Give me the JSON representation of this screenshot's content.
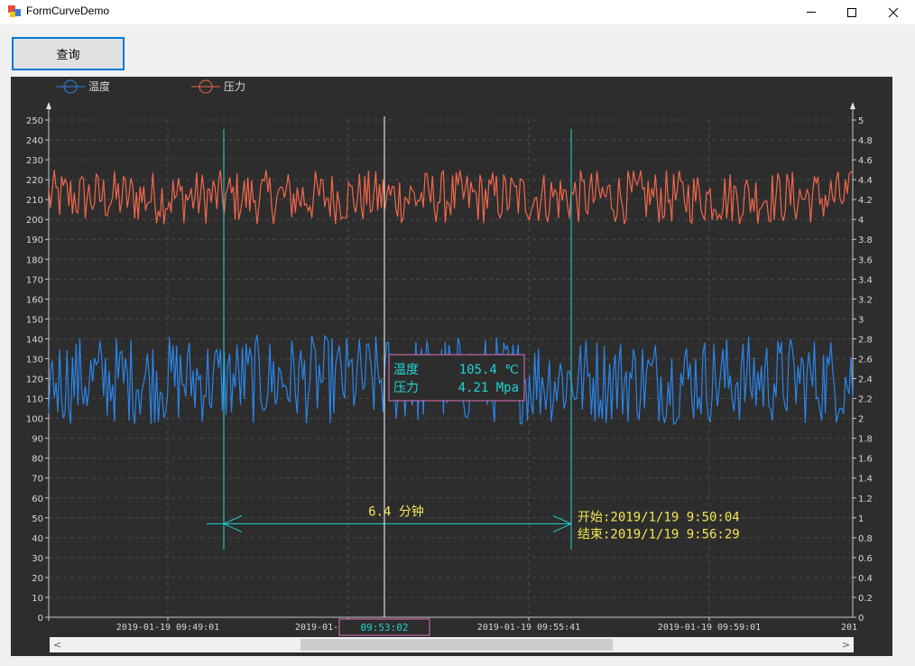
{
  "window": {
    "title": "FormCurveDemo",
    "controls": {
      "minimize": "minimize-icon",
      "maximize": "maximize-icon",
      "close": "close-icon"
    }
  },
  "toolbar": {
    "query_label": "查询"
  },
  "colors": {
    "temperature": "#2b84e8",
    "pressure": "#f0674c",
    "cursor": "#22d3d3",
    "measure_text": "#f5e653",
    "tooltip_border": "#e070c0",
    "background": "#2d2d2d"
  },
  "chart_data": {
    "type": "line",
    "legend": [
      {
        "name": "温度",
        "color": "#2b84e8",
        "axis": "left"
      },
      {
        "name": "压力",
        "color": "#f0674c",
        "axis": "right"
      }
    ],
    "legend_position": "top-left",
    "grid": true,
    "left_axis": {
      "ylim": [
        0,
        250
      ],
      "ticks": [
        "0",
        "10",
        "20",
        "30",
        "40",
        "50",
        "60",
        "70",
        "80",
        "90",
        "100",
        "110",
        "120",
        "130",
        "140",
        "150",
        "160",
        "170",
        "180",
        "190",
        "200",
        "210",
        "220",
        "230",
        "240",
        "250"
      ]
    },
    "right_axis": {
      "ylim": [
        0,
        5
      ],
      "ticks": [
        "0",
        "0.2",
        "0.4",
        "0.6",
        "0.8",
        "1",
        "1.2",
        "1.4",
        "1.6",
        "1.8",
        "2",
        "2.2",
        "2.4",
        "2.6",
        "2.8",
        "3",
        "3.2",
        "3.4",
        "3.6",
        "3.8",
        "4",
        "4.2",
        "4.4",
        "4.6",
        "4.8",
        "5"
      ]
    },
    "x_ticks": [
      "2019-01-19 09:49:01",
      "2019-01-19 09:55:41",
      "2019-01-19 09:59:01",
      "201"
    ],
    "x_tick_partial": "2019-01-",
    "series": [
      {
        "name": "温度",
        "axis": "left",
        "range": [
          97,
          142
        ],
        "typical_center": 118
      },
      {
        "name": "压力",
        "axis": "right",
        "range": [
          3.95,
          4.5
        ],
        "typical_center": 4.22
      }
    ],
    "crosshair": {
      "time_label": "09:53:02",
      "tooltip": [
        {
          "name": "温度",
          "value": "105.4 ℃"
        },
        {
          "name": "压力",
          "value": "4.21 Mpa"
        }
      ]
    },
    "measurement": {
      "duration": "6.4 分钟",
      "start": "开始:2019/1/19 9:50:04",
      "end": "结束:2019/1/19 9:56:29"
    }
  },
  "scrollbar": {
    "left_arrow": "<",
    "right_arrow": ">",
    "position": 0.31,
    "visible_fraction": 0.39
  }
}
